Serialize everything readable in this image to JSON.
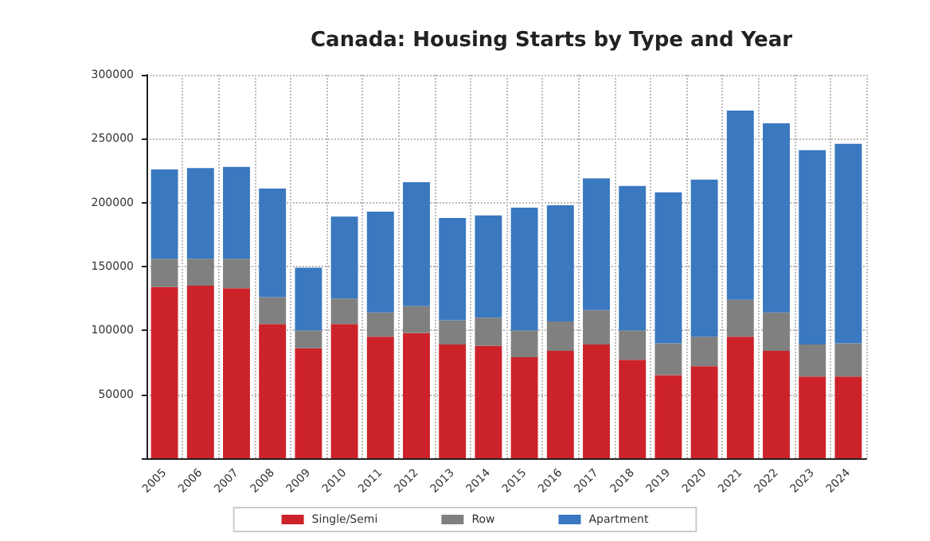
{
  "chart_data": {
    "type": "bar",
    "title": "Canada: Housing Starts by Type and Year",
    "stacked": true,
    "categories": [
      "2005",
      "2006",
      "2007",
      "2008",
      "2009",
      "2010",
      "2011",
      "2012",
      "2013",
      "2014",
      "2015",
      "2016",
      "2017",
      "2018",
      "2019",
      "2020",
      "2021",
      "2022",
      "2023",
      "2024"
    ],
    "series": [
      {
        "name": "Single/Semi",
        "color": "#cc2229",
        "values": [
          134000,
          135000,
          133000,
          105000,
          86000,
          105000,
          95000,
          98000,
          89000,
          88000,
          79000,
          84000,
          89000,
          77000,
          65000,
          72000,
          95000,
          84000,
          64000,
          64000
        ]
      },
      {
        "name": "Row",
        "color": "#808080",
        "values": [
          22000,
          21000,
          23000,
          21000,
          14000,
          20000,
          19000,
          21000,
          19000,
          22000,
          21000,
          23000,
          27000,
          23000,
          25000,
          23000,
          29000,
          30000,
          25000,
          26000
        ]
      },
      {
        "name": "Apartment",
        "color": "#3a78c0",
        "values": [
          70000,
          71000,
          72000,
          85000,
          49000,
          64000,
          79000,
          97000,
          80000,
          80000,
          96000,
          91000,
          103000,
          113000,
          118000,
          123000,
          148000,
          148000,
          152000,
          156000
        ]
      }
    ],
    "ylim": [
      0,
      300000
    ],
    "yticks": [
      {
        "value": 0,
        "label": null
      },
      50000,
      100000,
      150000,
      200000,
      250000,
      300000
    ],
    "grid": true,
    "legend": "bottom"
  }
}
